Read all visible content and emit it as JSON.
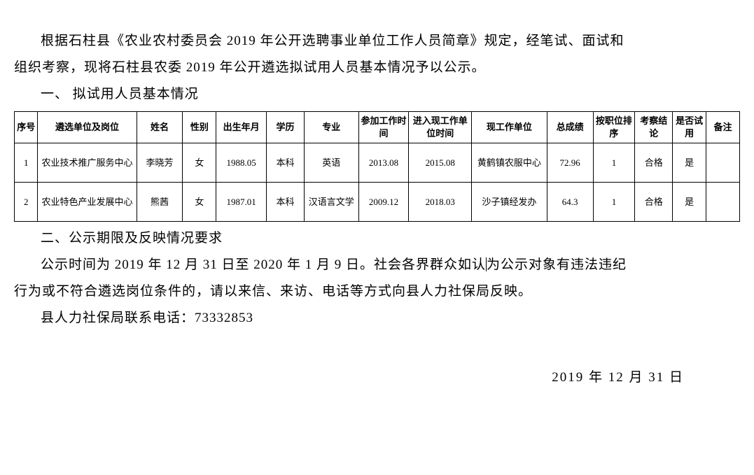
{
  "intro": {
    "para1a": "根据石柱县《农业农村委员会 2019 年公开选聘事业单位工作人员简章》规定，经笔试、面试和",
    "para1b": "组织考察，现将石柱县农委 2019 年公开遴选拟试用人员基本情况予以公示。"
  },
  "section1_heading": "一、 拟试用人员基本情况",
  "table": {
    "headers": {
      "seq": "序号",
      "unit": "遴选单位及岗位",
      "name": "姓名",
      "gender": "性别",
      "birth": "出生年月",
      "edu": "学历",
      "major": "专业",
      "worktime": "参加工作时间",
      "currtime": "进入现工作单位时间",
      "currunit": "现工作单位",
      "score": "总成绩",
      "rank": "按职位排序",
      "review": "考察结论",
      "trial": "是否试用",
      "note": "备注"
    },
    "rows": [
      {
        "seq": "1",
        "unit": "农业技术推广服务中心",
        "name": "李晓芳",
        "gender": "女",
        "birth": "1988.05",
        "edu": "本科",
        "major": "英语",
        "worktime": "2013.08",
        "currtime": "2015.08",
        "currunit": "黄鹤镇农服中心",
        "score": "72.96",
        "rank": "1",
        "review": "合格",
        "trial": "是",
        "note": ""
      },
      {
        "seq": "2",
        "unit": "农业特色产业发展中心",
        "name": "熊茜",
        "gender": "女",
        "birth": "1987.01",
        "edu": "本科",
        "major": "汉语言文学",
        "worktime": "2009.12",
        "currtime": "2018.03",
        "currunit": "沙子镇经发办",
        "score": "64.3",
        "rank": "1",
        "review": "合格",
        "trial": "是",
        "note": ""
      }
    ]
  },
  "section2_heading": "二、公示期限及反映情况要求",
  "section2": {
    "para1a": "公示时间为 2019 年 12 月 31 日至 2020 年 1 月 9 日。社会各界群众如认",
    "para1b": "为公示对象有违法违纪",
    "para2": "行为或不符合遴选岗位条件的，请以来信、来访、电话等方式向县人力社保局反映。",
    "para3": "县人力社保局联系电话：73332853"
  },
  "footer_date": "2019 年 12 月 31 日",
  "styling": {
    "body_font_size": 19,
    "table_font_size": 13,
    "text_color": "#000000",
    "background_color": "#ffffff",
    "border_color": "#000000",
    "line_height": 2,
    "letter_spacing": 1,
    "th_height": 42,
    "td_height": 56
  }
}
